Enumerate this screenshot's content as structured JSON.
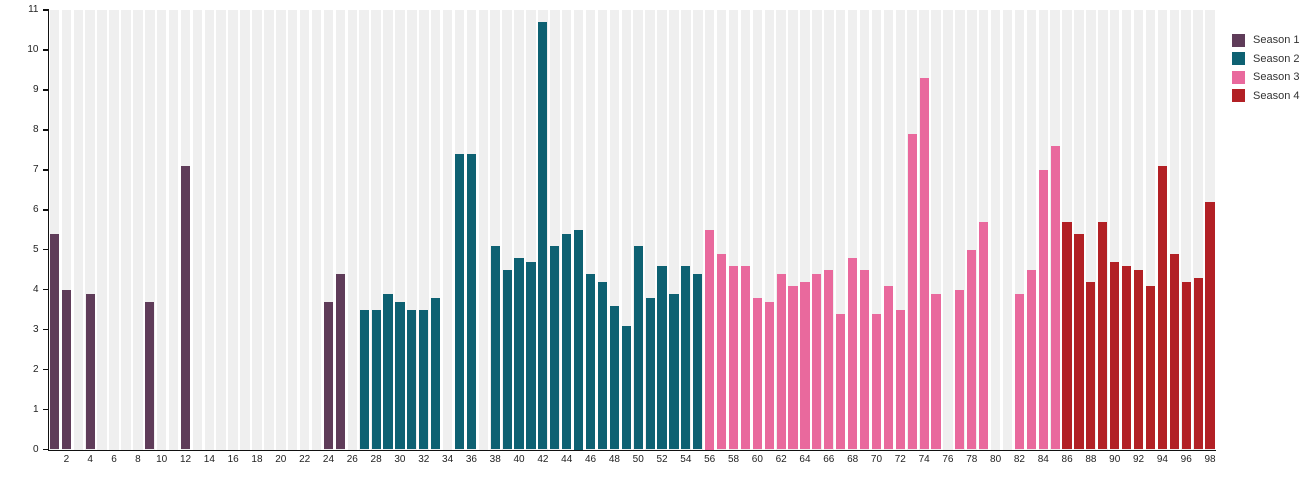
{
  "chart_data": {
    "type": "bar",
    "title": "",
    "xlabel": "",
    "ylabel": "",
    "ylim": [
      0,
      11
    ],
    "x_range": [
      1,
      98
    ],
    "y_ticks": [
      "0",
      "1",
      "2",
      "3",
      "4",
      "5",
      "6",
      "7",
      "8",
      "9",
      "10",
      "11"
    ],
    "x_ticks": [
      "2",
      "4",
      "6",
      "8",
      "10",
      "12",
      "14",
      "16",
      "18",
      "20",
      "22",
      "24",
      "26",
      "28",
      "30",
      "32",
      "34",
      "36",
      "38",
      "40",
      "42",
      "44",
      "46",
      "48",
      "50",
      "52",
      "54",
      "56",
      "58",
      "60",
      "62",
      "64",
      "66",
      "68",
      "70",
      "72",
      "74",
      "76",
      "78",
      "80",
      "82",
      "84",
      "86",
      "88",
      "90",
      "92",
      "94",
      "96",
      "98"
    ],
    "grid": "vertical-episode-stripes",
    "legend_position": "top-right",
    "series": [
      {
        "name": "Season 1",
        "color": "#5f3c59",
        "points": [
          [
            1,
            5.4
          ],
          [
            2,
            4.0
          ],
          [
            4,
            3.9
          ],
          [
            9,
            3.7
          ],
          [
            12,
            7.1
          ],
          [
            24,
            3.7
          ],
          [
            25,
            4.4
          ]
        ]
      },
      {
        "name": "Season 2",
        "color": "#0e6172",
        "points": [
          [
            27,
            3.5
          ],
          [
            28,
            3.5
          ],
          [
            29,
            3.9
          ],
          [
            30,
            3.7
          ],
          [
            31,
            3.5
          ],
          [
            32,
            3.5
          ],
          [
            33,
            3.8
          ],
          [
            35,
            7.4
          ],
          [
            36,
            7.4
          ],
          [
            38,
            5.1
          ],
          [
            39,
            4.5
          ],
          [
            40,
            4.8
          ],
          [
            41,
            4.7
          ],
          [
            42,
            10.7
          ],
          [
            43,
            5.1
          ],
          [
            44,
            5.4
          ],
          [
            45,
            5.5
          ],
          [
            46,
            4.4
          ],
          [
            47,
            4.2
          ],
          [
            48,
            3.6
          ],
          [
            49,
            3.1
          ],
          [
            50,
            5.1
          ],
          [
            51,
            3.8
          ],
          [
            52,
            4.6
          ],
          [
            53,
            3.9
          ],
          [
            54,
            4.6
          ],
          [
            55,
            4.4
          ]
        ]
      },
      {
        "name": "Season 3",
        "color": "#e9699d",
        "points": [
          [
            56,
            5.5
          ],
          [
            57,
            4.9
          ],
          [
            58,
            4.6
          ],
          [
            59,
            4.6
          ],
          [
            60,
            3.8
          ],
          [
            61,
            3.7
          ],
          [
            62,
            4.4
          ],
          [
            63,
            4.1
          ],
          [
            64,
            4.2
          ],
          [
            65,
            4.4
          ],
          [
            66,
            4.5
          ],
          [
            67,
            3.4
          ],
          [
            68,
            4.8
          ],
          [
            69,
            4.5
          ],
          [
            70,
            3.4
          ],
          [
            71,
            4.1
          ],
          [
            72,
            3.5
          ],
          [
            73,
            7.9
          ],
          [
            74,
            9.3
          ],
          [
            75,
            3.9
          ],
          [
            77,
            4.0
          ],
          [
            78,
            5.0
          ],
          [
            79,
            5.7
          ],
          [
            82,
            3.9
          ],
          [
            83,
            4.5
          ],
          [
            84,
            7.0
          ],
          [
            85,
            7.6
          ]
        ]
      },
      {
        "name": "Season 4",
        "color": "#b22025",
        "points": [
          [
            86,
            5.7
          ],
          [
            87,
            5.4
          ],
          [
            88,
            4.2
          ],
          [
            89,
            5.7
          ],
          [
            90,
            4.7
          ],
          [
            91,
            4.6
          ],
          [
            92,
            4.5
          ],
          [
            93,
            4.1
          ],
          [
            94,
            7.1
          ],
          [
            95,
            4.9
          ],
          [
            96,
            4.2
          ],
          [
            97,
            4.3
          ],
          [
            98,
            6.2
          ]
        ]
      }
    ],
    "colors": {
      "axis": "#111111",
      "tick_label": "#222222",
      "stripe": "#efefef",
      "background": "#ffffff"
    }
  }
}
